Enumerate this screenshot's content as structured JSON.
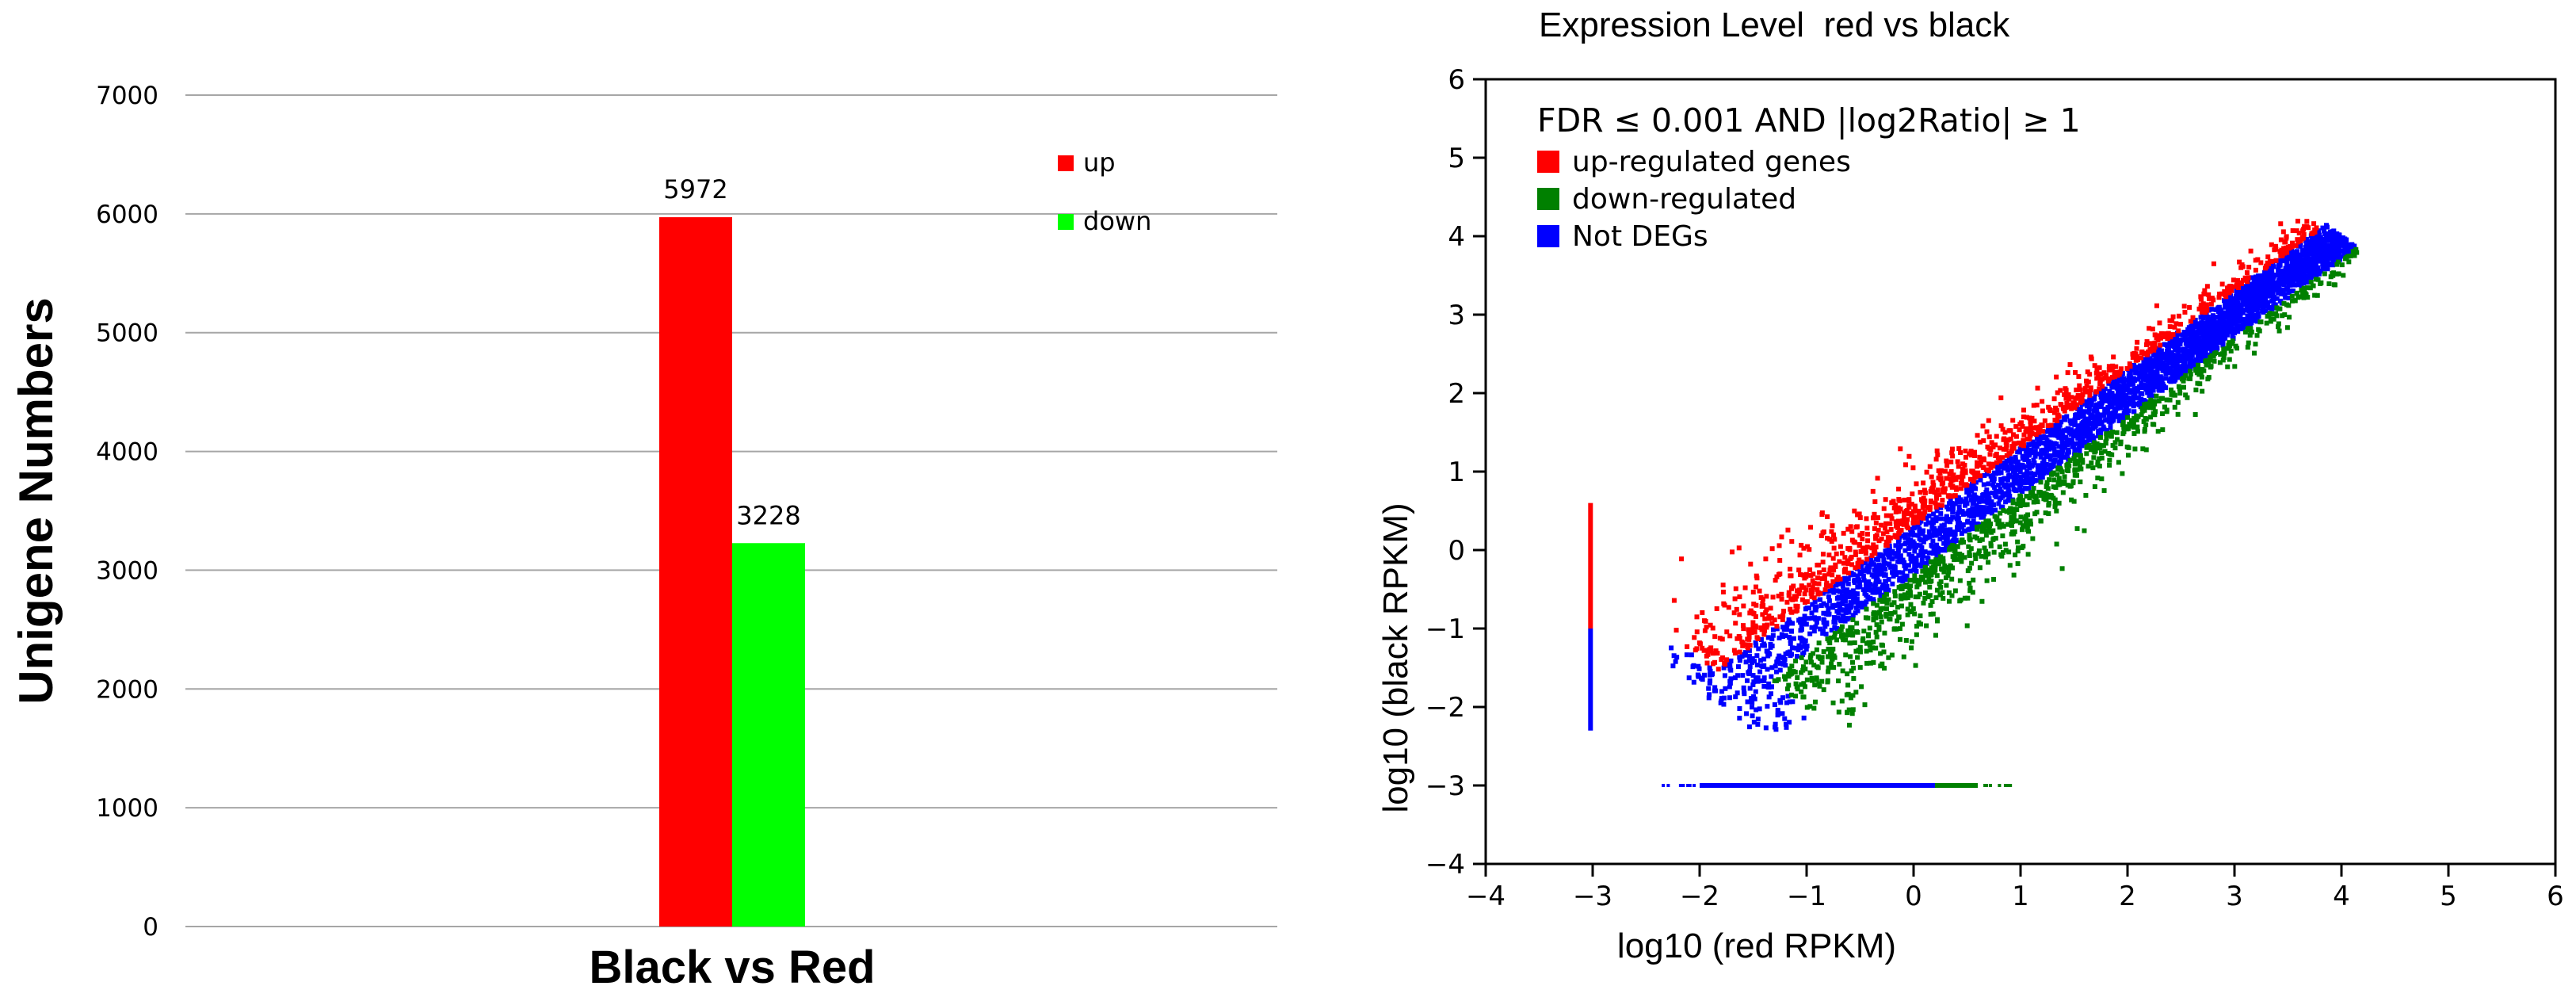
{
  "chart_data": [
    {
      "type": "bar",
      "title": "",
      "xlabel": "Black vs Red",
      "ylabel": "Unigene Numbers",
      "categories": [
        "Black vs Red"
      ],
      "series": [
        {
          "name": "up",
          "color": "#ff0000",
          "values": [
            5972
          ]
        },
        {
          "name": "down",
          "color": "#00ff00",
          "values": [
            3228
          ]
        }
      ],
      "data_labels": [
        "5972",
        "3228"
      ],
      "ylim": [
        0,
        7000
      ],
      "yticks": [
        0,
        1000,
        2000,
        3000,
        4000,
        5000,
        6000,
        7000
      ],
      "ytick_labels": [
        "0",
        "1000",
        "2000",
        "3000",
        "4000",
        "5000",
        "6000",
        "7000"
      ],
      "grid": true,
      "legend": {
        "position": "top-right",
        "items": [
          "up",
          "down"
        ]
      }
    },
    {
      "type": "scatter",
      "title": "Expression Level  red vs black",
      "xlabel": "log10 (red RPKM)",
      "ylabel": "log10 (black RPKM)",
      "xlim": [
        -4,
        6
      ],
      "ylim": [
        -4,
        6
      ],
      "xticks": [
        -4,
        -3,
        -2,
        -1,
        0,
        1,
        2,
        3,
        4,
        5,
        6
      ],
      "xtick_labels": [
        "−4",
        "−3",
        "−2",
        "−1",
        "0",
        "1",
        "2",
        "3",
        "4",
        "5",
        "6"
      ],
      "yticks": [
        -4,
        -3,
        -2,
        -1,
        0,
        1,
        2,
        3,
        4,
        5,
        6
      ],
      "ytick_labels": [
        "−4",
        "−3",
        "−2",
        "−1",
        "0",
        "1",
        "2",
        "3",
        "4",
        "5",
        "6"
      ],
      "annotation": "FDR ≤ 0.001 AND |log2Ratio| ≥ 1",
      "legend": {
        "position": "top-left",
        "items": [
          {
            "name": "up-regulated genes",
            "color": "#ff0000"
          },
          {
            "name": "down-regulated",
            "color": "#008000"
          },
          {
            "name": "Not DEGs",
            "color": "#0000ff"
          }
        ]
      },
      "point_cloud": {
        "description": "dense cloud along the diagonal",
        "x_range": [
          -2.3,
          4.1
        ],
        "y_range": [
          -2.3,
          4.2
        ],
        "vertical_strip": {
          "x": -3.02,
          "y_range": [
            -2.3,
            0.6
          ]
        },
        "horizontal_strip": {
          "y": -3.0,
          "x_range": [
            -2.4,
            0.95
          ]
        }
      }
    }
  ]
}
